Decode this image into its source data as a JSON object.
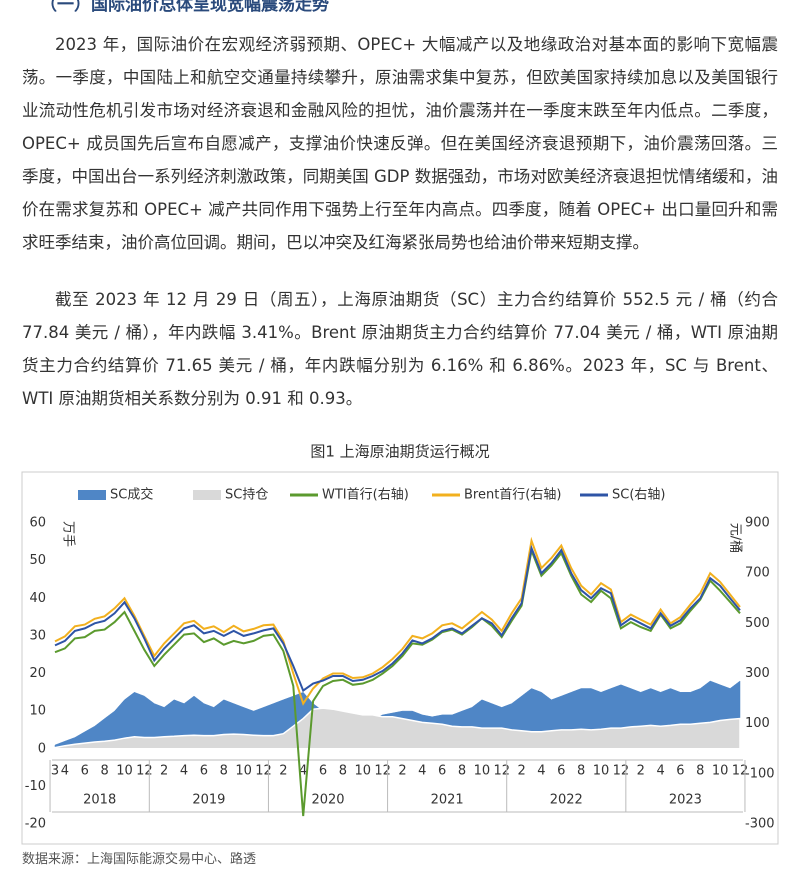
{
  "heading": "（一）国际油价总体呈现宽幅震荡走势",
  "paragraphs": [
    "2023 年，国际油价在宏观经济弱预期、OPEC+ 大幅减产以及地缘政治对基本面的影响下宽幅震荡。一季度，中国陆上和航空交通量持续攀升，原油需求集中复苏，但欧美国家持续加息以及美国银行业流动性危机引发市场对经济衰退和金融风险的担忧，油价震荡并在一季度末跌至年内低点。二季度，OPEC+ 成员国先后宣布自愿减产，支撑油价快速反弹。但在美国经济衰退预期下，油价震荡回落。三季度，中国出台一系列经济刺激政策，同期美国 GDP 数据强劲，市场对欧美经济衰退担忧情绪缓和，油价在需求复苏和 OPEC+ 减产共同作用下强势上行至年内高点。四季度，随着 OPEC+ 出口量回升和需求旺季结束，油价高位回调。期间，巴以冲突及红海紧张局势也给油价带来短期支撑。",
    "截至 2023 年 12 月 29 日（周五），上海原油期货（SC）主力合约结算价 552.5 元 / 桶（约合 77.84 美元 / 桶），年内跌幅 3.41%。Brent 原油期货主力合约结算价 77.04 美元 / 桶，WTI 原油期货主力合约结算价 71.65 美元 / 桶，年内跌幅分别为 6.16% 和 6.86%。2023 年，SC 与 Brent、WTI 原油期货相关系数分别为 0.91 和 0.93。"
  ],
  "chart_data": {
    "type": "combo",
    "title": "图1 上海原油期货运行概况",
    "y_label": "万手",
    "y2_label": "元/桶",
    "categories": [
      "2018-03",
      "2018-04",
      "2018-05",
      "2018-06",
      "2018-07",
      "2018-08",
      "2018-09",
      "2018-10",
      "2018-11",
      "2018-12",
      "2019-01",
      "2019-02",
      "2019-03",
      "2019-04",
      "2019-05",
      "2019-06",
      "2019-07",
      "2019-08",
      "2019-09",
      "2019-10",
      "2019-11",
      "2019-12",
      "2020-01",
      "2020-02",
      "2020-03",
      "2020-04",
      "2020-05",
      "2020-06",
      "2020-07",
      "2020-08",
      "2020-09",
      "2020-10",
      "2020-11",
      "2020-12",
      "2021-01",
      "2021-02",
      "2021-03",
      "2021-04",
      "2021-05",
      "2021-06",
      "2021-07",
      "2021-08",
      "2021-09",
      "2021-10",
      "2021-11",
      "2021-12",
      "2022-01",
      "2022-02",
      "2022-03",
      "2022-04",
      "2022-05",
      "2022-06",
      "2022-07",
      "2022-08",
      "2022-09",
      "2022-10",
      "2022-11",
      "2022-12",
      "2023-01",
      "2023-02",
      "2023-03",
      "2023-04",
      "2023-05",
      "2023-06",
      "2023-07",
      "2023-08",
      "2023-09",
      "2023-10",
      "2023-11",
      "2023-12"
    ],
    "xticks": [
      {
        "value": "2018-03",
        "label": "3"
      },
      {
        "value": "2018-04",
        "label": "4"
      },
      {
        "value": "2018-06",
        "label": "6"
      },
      {
        "value": "2018-08",
        "label": "8"
      },
      {
        "value": "2018-10",
        "label": "10"
      },
      {
        "value": "2018-12",
        "label": "12"
      },
      {
        "value": "2019-02",
        "label": "2"
      },
      {
        "value": "2019-04",
        "label": "4"
      },
      {
        "value": "2019-06",
        "label": "6"
      },
      {
        "value": "2019-08",
        "label": "8"
      },
      {
        "value": "2019-10",
        "label": "10"
      },
      {
        "value": "2019-12",
        "label": "12"
      },
      {
        "value": "2020-02",
        "label": "2"
      },
      {
        "value": "2020-04",
        "label": "4"
      },
      {
        "value": "2020-06",
        "label": "6"
      },
      {
        "value": "2020-08",
        "label": "8"
      },
      {
        "value": "2020-10",
        "label": "10"
      },
      {
        "value": "2020-12",
        "label": "12"
      },
      {
        "value": "2021-02",
        "label": "2"
      },
      {
        "value": "2021-04",
        "label": "4"
      },
      {
        "value": "2021-06",
        "label": "6"
      },
      {
        "value": "2021-08",
        "label": "8"
      },
      {
        "value": "2021-10",
        "label": "10"
      },
      {
        "value": "2021-12",
        "label": "12"
      },
      {
        "value": "2022-02",
        "label": "2"
      },
      {
        "value": "2022-04",
        "label": "4"
      },
      {
        "value": "2022-06",
        "label": "6"
      },
      {
        "value": "2022-08",
        "label": "8"
      },
      {
        "value": "2022-10",
        "label": "10"
      },
      {
        "value": "2022-12",
        "label": "12"
      },
      {
        "value": "2023-02",
        "label": "2"
      },
      {
        "value": "2023-04",
        "label": "4"
      },
      {
        "value": "2023-06",
        "label": "6"
      },
      {
        "value": "2023-08",
        "label": "8"
      },
      {
        "value": "2023-10",
        "label": "10"
      },
      {
        "value": "2023-12",
        "label": "12"
      }
    ],
    "year_labels": [
      "2018",
      "2019",
      "2020",
      "2021",
      "2022",
      "2023"
    ],
    "ylim": [
      -20,
      60
    ],
    "yticks": [
      -20,
      -10,
      0,
      10,
      20,
      30,
      40,
      50,
      60
    ],
    "y2lim": [
      -300,
      900
    ],
    "y2ticks": [
      -300,
      -100,
      100,
      300,
      500,
      700,
      900
    ],
    "legend": "top",
    "series": [
      {
        "name": "SC成交",
        "kind": "area",
        "color": "#4f86c6",
        "values": [
          1.0,
          2.0,
          3.0,
          4.5,
          6.0,
          8.0,
          10.0,
          13.0,
          15.0,
          14.0,
          12.0,
          11.0,
          13.0,
          12.0,
          14.0,
          12.0,
          11.0,
          13.0,
          12.0,
          11.0,
          10.0,
          11.0,
          12.0,
          13.0,
          14.0,
          15.0,
          12.0,
          10.0,
          8.0,
          8.5,
          8.0,
          7.5,
          8.0,
          9.0,
          9.5,
          10.0,
          10.0,
          9.0,
          8.5,
          9.0,
          9.0,
          10.0,
          11.0,
          13.0,
          12.0,
          11.0,
          12.0,
          14.0,
          16.0,
          15.0,
          13.0,
          14.0,
          15.0,
          16.0,
          16.0,
          15.0,
          16.0,
          17.0,
          16.0,
          15.0,
          16.0,
          15.0,
          16.0,
          15.0,
          15.0,
          16.0,
          18.0,
          17.0,
          16.0,
          18.0
        ]
      },
      {
        "name": "SC持仓",
        "kind": "area",
        "color": "#d9d9d9",
        "values": [
          0.3,
          0.8,
          1.2,
          1.5,
          1.8,
          2.0,
          2.3,
          2.8,
          3.2,
          3.0,
          3.0,
          3.2,
          3.3,
          3.5,
          3.6,
          3.5,
          3.5,
          3.8,
          3.9,
          3.8,
          3.6,
          3.5,
          3.5,
          4.0,
          6.0,
          8.0,
          10.5,
          10.8,
          10.5,
          10.0,
          9.5,
          9.0,
          9.0,
          8.5,
          8.5,
          8.0,
          7.5,
          7.0,
          6.8,
          6.5,
          6.0,
          5.8,
          5.8,
          5.5,
          5.5,
          5.5,
          5.0,
          4.8,
          4.5,
          4.5,
          4.8,
          5.0,
          5.0,
          5.2,
          5.0,
          5.2,
          5.5,
          5.5,
          5.8,
          6.0,
          6.2,
          6.0,
          6.2,
          6.5,
          6.5,
          6.8,
          7.0,
          7.5,
          7.8,
          8.0
        ]
      },
      {
        "name": "WTI首行(右轴)",
        "kind": "line",
        "axis": "y2",
        "color": "#5b9a2e",
        "values": [
          385,
          400,
          440,
          445,
          470,
          475,
          505,
          545,
          470,
          395,
          330,
          375,
          415,
          455,
          460,
          425,
          440,
          415,
          430,
          420,
          430,
          450,
          455,
          390,
          250,
          -268,
          190,
          250,
          270,
          275,
          255,
          260,
          275,
          300,
          330,
          370,
          420,
          415,
          435,
          465,
          475,
          455,
          485,
          520,
          490,
          445,
          510,
          570,
          790,
          690,
          730,
          780,
          690,
          615,
          585,
          630,
          600,
          480,
          505,
          485,
          470,
          535,
          480,
          500,
          550,
          595,
          670,
          630,
          585,
          540
        ]
      },
      {
        "name": "Brent首行(右轴)",
        "kind": "line",
        "axis": "y2",
        "color": "#f2b01e",
        "values": [
          428,
          448,
          488,
          495,
          518,
          528,
          560,
          600,
          530,
          450,
          370,
          420,
          460,
          500,
          510,
          478,
          488,
          465,
          490,
          468,
          478,
          492,
          495,
          430,
          300,
          180,
          240,
          280,
          300,
          300,
          282,
          285,
          300,
          325,
          358,
          398,
          450,
          440,
          460,
          492,
          500,
          480,
          512,
          545,
          515,
          470,
          540,
          600,
          830,
          720,
          760,
          810,
          720,
          650,
          615,
          660,
          635,
          505,
          535,
          515,
          495,
          555,
          500,
          525,
          575,
          620,
          700,
          665,
          615,
          565
        ]
      },
      {
        "name": "SC(右轴)",
        "kind": "line",
        "axis": "y2",
        "color": "#2e54a6",
        "values": [
          412,
          430,
          470,
          480,
          500,
          510,
          540,
          584,
          520,
          440,
          352,
          400,
          440,
          480,
          492,
          460,
          470,
          450,
          470,
          450,
          460,
          472,
          480,
          420,
          330,
          232,
          260,
          272,
          290,
          290,
          270,
          275,
          290,
          310,
          340,
          380,
          432,
          420,
          440,
          470,
          480,
          460,
          490,
          520,
          500,
          452,
          520,
          580,
          800,
          700,
          740,
          792,
          700,
          632,
          600,
          640,
          620,
          492,
          520,
          500,
          480,
          540,
          490,
          512,
          560,
          600,
          680,
          650,
          600,
          552
        ]
      }
    ]
  },
  "source": "数据来源：上海国际能源交易中心、路透"
}
